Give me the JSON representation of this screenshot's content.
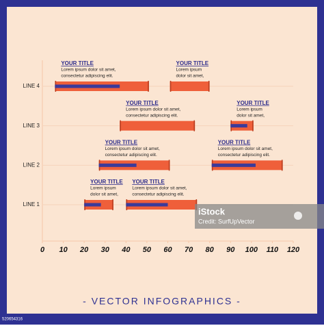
{
  "chart_data": {
    "type": "gantt",
    "categories": [
      "LINE 1",
      "LINE 2",
      "LINE 3",
      "LINE 4"
    ],
    "xlim": [
      0,
      120
    ],
    "xticks": [
      0,
      10,
      20,
      30,
      40,
      50,
      60,
      70,
      80,
      90,
      100,
      110,
      120
    ],
    "bar_color": "#ef5f3a",
    "progress_color": "#3b3a9a",
    "tasks": [
      {
        "category": "LINE 4",
        "start": 6,
        "end": 51,
        "progress": 37,
        "title": "YOUR TITLE",
        "text": [
          "Lorem ipsum dolor sit amet,",
          "consectetur adipiscing elit."
        ]
      },
      {
        "category": "LINE 4",
        "start": 61,
        "end": 80,
        "progress": null,
        "title": "YOUR TITLE",
        "text": [
          "Lorem ipsum",
          "dolor sit amet,"
        ]
      },
      {
        "category": "LINE 3",
        "start": 37,
        "end": 73,
        "progress": null,
        "title": "YOUR TITLE",
        "text": [
          "Lorem ipsum dolor sit amet,",
          "consectetur adipiscing elit."
        ]
      },
      {
        "category": "LINE 3",
        "start": 90,
        "end": 101,
        "progress": 98,
        "title": "YOUR TITLE",
        "text": [
          "Lorem ipsum",
          "dolor sit amet,"
        ]
      },
      {
        "category": "LINE 2",
        "start": 27,
        "end": 61,
        "progress": 45,
        "title": "YOUR TITLE",
        "text": [
          "Lorem ipsum dolor sit amet,",
          "consectetur adipiscing elit."
        ]
      },
      {
        "category": "LINE 2",
        "start": 81,
        "end": 115,
        "progress": 102,
        "title": "YOUR TITLE",
        "text": [
          "Lorem ipsum dolor sit amet,",
          "consectetur adipiscing elit."
        ]
      },
      {
        "category": "LINE 1",
        "start": 20,
        "end": 34,
        "progress": 28,
        "title": "YOUR TITLE",
        "text": [
          "Lorem ipsum",
          "dolor sit amet,"
        ]
      },
      {
        "category": "LINE 1",
        "start": 40,
        "end": 74,
        "progress": 60,
        "title": "YOUR TITLE",
        "text": [
          "Lorem ipsum dolor sit amet,",
          "consectetur adipiscing elit."
        ]
      }
    ],
    "footer": "- VECTOR INFOGRAPHICS -"
  },
  "watermark": {
    "brand": "iStock",
    "credit": "Credit: SurfUpVector",
    "id": "520654316"
  }
}
